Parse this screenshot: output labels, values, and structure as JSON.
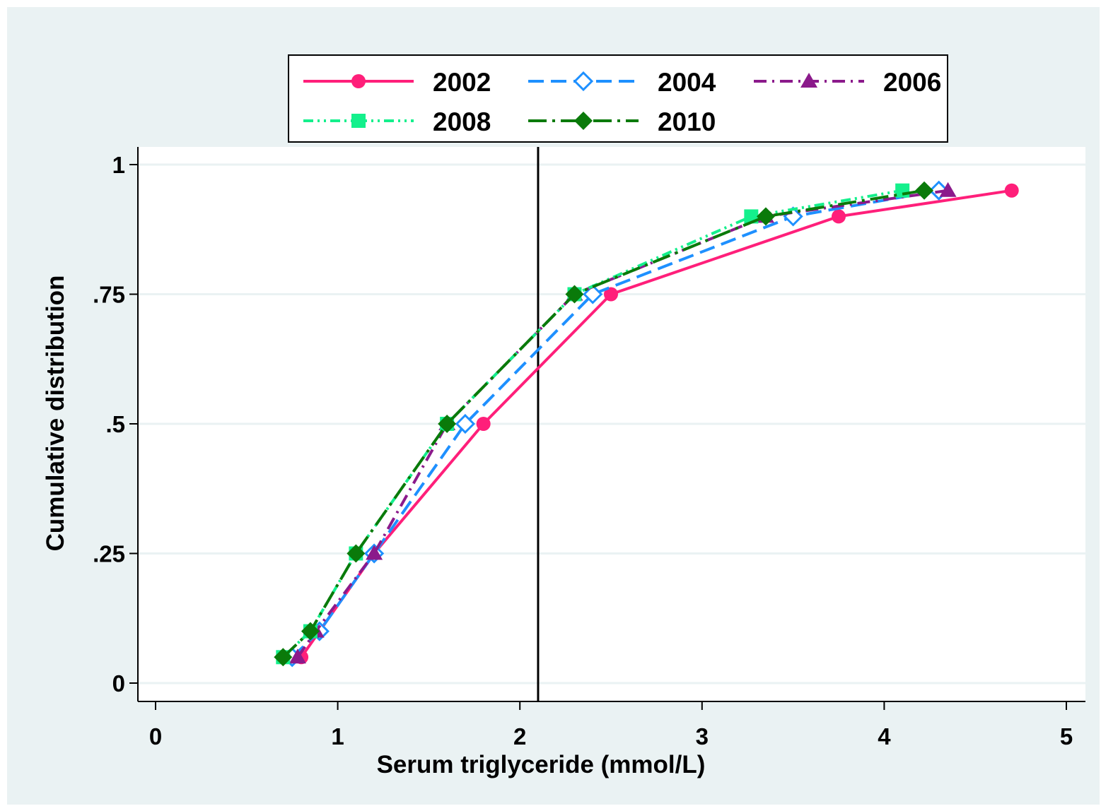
{
  "chart_data": {
    "type": "line",
    "title": "",
    "xlabel": "Serum triglyceride (mmol/L)",
    "ylabel": "Cumulative distribution",
    "xlim": [
      0,
      5
    ],
    "ylim": [
      0,
      1
    ],
    "xticks": [
      "0",
      "1",
      "2",
      "3",
      "4",
      "5"
    ],
    "yticks": [
      "0",
      ".25",
      ".5",
      ".75",
      "1"
    ],
    "grid": true,
    "legend_position": "top",
    "reference_line_x": 2.1,
    "series": [
      {
        "name": "2002",
        "color": "#ff1f7a",
        "marker": "circle",
        "dash": "solid",
        "x": [
          0.8,
          0.9,
          1.2,
          1.8,
          2.5,
          3.75,
          4.7
        ],
        "y": [
          0.05,
          0.1,
          0.25,
          0.5,
          0.75,
          0.9,
          0.95
        ]
      },
      {
        "name": "2004",
        "color": "#1e90ff",
        "marker": "diamond-hollow",
        "dash": "long-dash",
        "x": [
          0.75,
          0.9,
          1.2,
          1.7,
          2.4,
          3.5,
          4.3
        ],
        "y": [
          0.05,
          0.1,
          0.25,
          0.5,
          0.75,
          0.9,
          0.95
        ]
      },
      {
        "name": "2006",
        "color": "#8b1a8b",
        "marker": "triangle",
        "dash": "dash-dot",
        "x": [
          0.78,
          0.88,
          1.2,
          1.6,
          2.3,
          3.35,
          4.35
        ],
        "y": [
          0.05,
          0.1,
          0.25,
          0.5,
          0.75,
          0.9,
          0.95
        ]
      },
      {
        "name": "2008",
        "color": "#14f08c",
        "marker": "square",
        "dash": "dash-dot-dot",
        "x": [
          0.7,
          0.85,
          1.1,
          1.6,
          2.3,
          3.27,
          4.1
        ],
        "y": [
          0.05,
          0.1,
          0.25,
          0.5,
          0.75,
          0.9,
          0.95
        ]
      },
      {
        "name": "2010",
        "color": "#0a7a0a",
        "marker": "diamond",
        "dash": "long-dash-dot",
        "x": [
          0.7,
          0.85,
          1.1,
          1.6,
          2.3,
          3.35,
          4.22
        ],
        "y": [
          0.05,
          0.1,
          0.25,
          0.5,
          0.75,
          0.9,
          0.95
        ]
      }
    ]
  }
}
